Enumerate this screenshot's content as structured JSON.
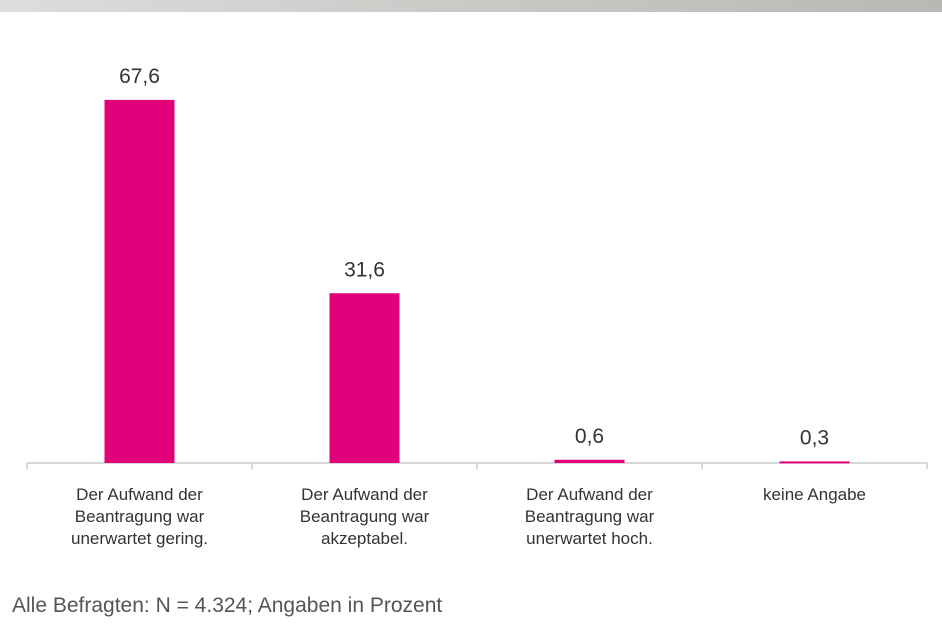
{
  "chart_data": {
    "type": "bar",
    "categories": [
      "Der Aufwand der Beantragung war unerwartet gering.",
      "Der Aufwand der Beantragung war akzeptabel.",
      "Der Aufwand der Beantragung war unerwartet hoch.",
      "keine Angabe"
    ],
    "values": [
      67.6,
      31.6,
      0.6,
      0.3
    ],
    "value_labels": [
      "67,6",
      "31,6",
      "0,6",
      "0,3"
    ],
    "color": "#e2007a",
    "ylim": [
      0,
      70
    ],
    "note": "Alle Befragten: N = 4.324; Angaben in Prozent"
  }
}
